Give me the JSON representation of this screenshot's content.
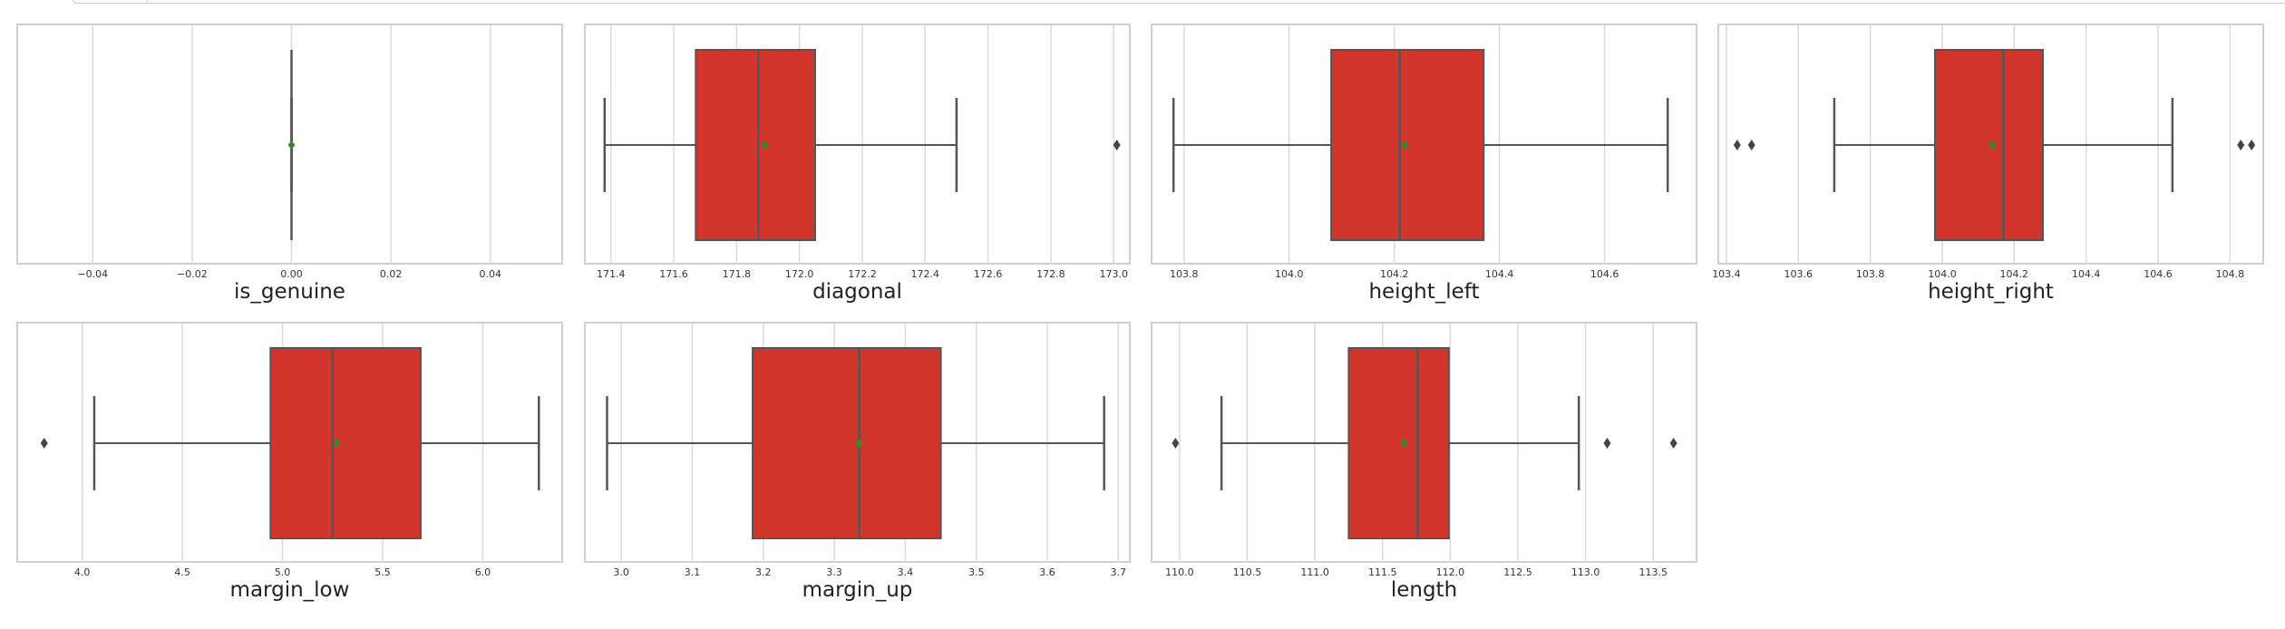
{
  "colors": {
    "box": "#D2352C",
    "median": "#555555",
    "mean": "#2E8B2E",
    "grid": "#d9d9d9",
    "frame": "#cfcfcf"
  },
  "chart_data": [
    {
      "type": "box",
      "xlabel": "is_genuine",
      "xlim": [
        -0.055,
        0.055
      ],
      "ticks": [
        -0.04,
        -0.02,
        0.0,
        0.02,
        0.04
      ],
      "tick_labels": [
        "−0.04",
        "−0.02",
        "0.00",
        "0.02",
        "0.04"
      ],
      "whisker_low": 0.0,
      "q1": 0.0,
      "median": 0.0,
      "q3": 0.0,
      "whisker_high": 0.0,
      "mean": 0.0,
      "outliers": []
    },
    {
      "type": "box",
      "xlabel": "diagonal",
      "xlim": [
        171.32,
        173.06
      ],
      "ticks": [
        171.4,
        171.6,
        171.8,
        172.0,
        172.2,
        172.4,
        172.6,
        172.8,
        173.0
      ],
      "tick_labels": [
        "171.4",
        "171.6",
        "171.8",
        "172.0",
        "172.2",
        "172.4",
        "172.6",
        "172.8",
        "173.0"
      ],
      "whisker_low": 171.38,
      "q1": 171.67,
      "median": 171.87,
      "q3": 172.05,
      "whisker_high": 172.5,
      "mean": 171.89,
      "outliers": [
        173.01
      ]
    },
    {
      "type": "box",
      "xlabel": "height_left",
      "xlim": [
        103.74,
        104.78
      ],
      "ticks": [
        103.8,
        104.0,
        104.2,
        104.4,
        104.6
      ],
      "tick_labels": [
        "103.8",
        "104.0",
        "104.2",
        "104.4",
        "104.6"
      ],
      "whisker_low": 103.78,
      "q1": 104.08,
      "median": 104.21,
      "q3": 104.37,
      "whisker_high": 104.72,
      "mean": 104.22,
      "outliers": []
    },
    {
      "type": "box",
      "xlabel": "height_right",
      "xlim": [
        103.38,
        104.9
      ],
      "ticks": [
        103.4,
        103.6,
        103.8,
        104.0,
        104.2,
        104.4,
        104.6,
        104.8
      ],
      "tick_labels": [
        "103.4",
        "103.6",
        "103.8",
        "104.0",
        "104.2",
        "104.4",
        "104.6",
        "104.8"
      ],
      "whisker_low": 103.7,
      "q1": 103.98,
      "median": 104.17,
      "q3": 104.28,
      "whisker_high": 104.64,
      "mean": 104.14,
      "outliers": [
        103.43,
        103.47,
        104.83,
        104.86
      ]
    },
    {
      "type": "box",
      "xlabel": "margin_low",
      "xlim": [
        3.68,
        6.41
      ],
      "ticks": [
        4.0,
        4.5,
        5.0,
        5.5,
        6.0
      ],
      "tick_labels": [
        "4.0",
        "4.5",
        "5.0",
        "5.5",
        "6.0"
      ],
      "whisker_low": 4.06,
      "q1": 4.94,
      "median": 5.25,
      "q3": 5.69,
      "whisker_high": 6.28,
      "mean": 5.27,
      "outliers": [
        3.81
      ]
    },
    {
      "type": "box",
      "xlabel": "margin_up",
      "xlim": [
        2.95,
        3.72
      ],
      "ticks": [
        3.0,
        3.1,
        3.2,
        3.3,
        3.4,
        3.5,
        3.6,
        3.7
      ],
      "tick_labels": [
        "3.0",
        "3.1",
        "3.2",
        "3.3",
        "3.4",
        "3.5",
        "3.6",
        "3.7"
      ],
      "whisker_low": 2.98,
      "q1": 3.185,
      "median": 3.335,
      "q3": 3.45,
      "whisker_high": 3.68,
      "mean": 3.335,
      "outliers": []
    },
    {
      "type": "box",
      "xlabel": "length",
      "xlim": [
        109.8,
        113.84
      ],
      "ticks": [
        110.0,
        110.5,
        111.0,
        111.5,
        112.0,
        112.5,
        113.0,
        113.5
      ],
      "tick_labels": [
        "110.0",
        "110.5",
        "111.0",
        "111.5",
        "112.0",
        "112.5",
        "113.0",
        "113.5"
      ],
      "whisker_low": 110.31,
      "q1": 111.25,
      "median": 111.76,
      "q3": 111.99,
      "whisker_high": 112.95,
      "mean": 111.66,
      "outliers": [
        109.97,
        113.16,
        113.65
      ]
    }
  ]
}
